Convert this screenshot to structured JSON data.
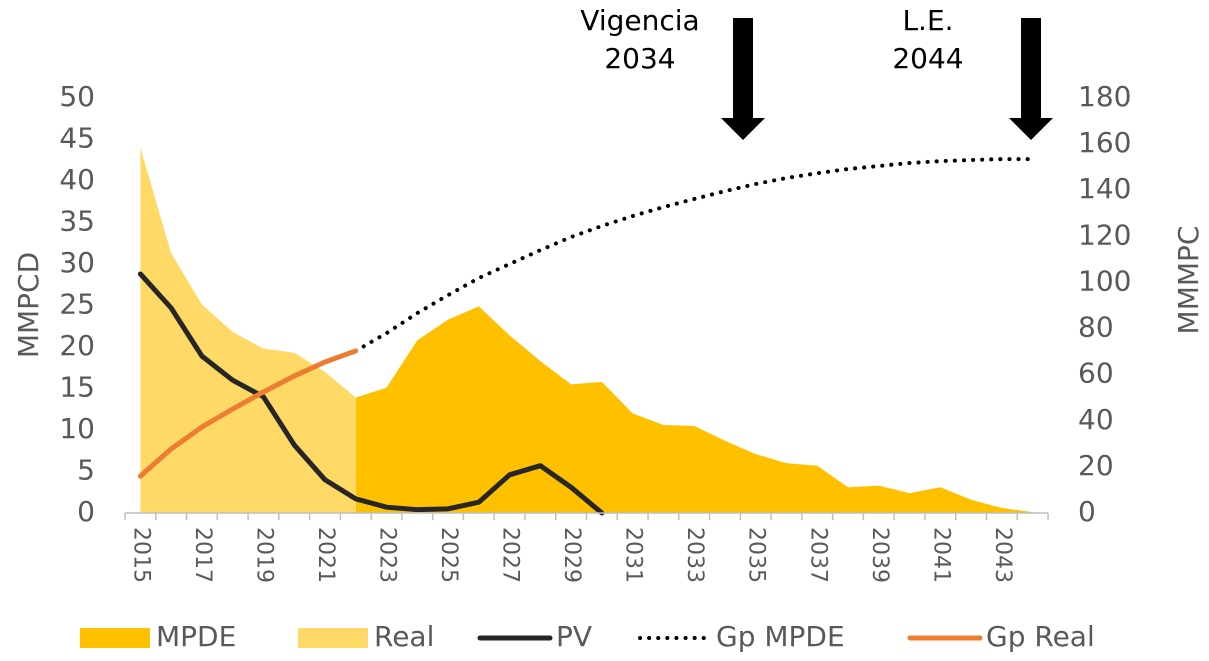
{
  "chart_data": {
    "type": "line",
    "categories": [
      "2015",
      null,
      "2017",
      null,
      "2019",
      null,
      "2021",
      null,
      "2023",
      null,
      "2025",
      null,
      "2027",
      null,
      "2029",
      null,
      "2031",
      null,
      "2033",
      null,
      "2035",
      null,
      "2037",
      null,
      "2039",
      null,
      "2041",
      null,
      "2043",
      null
    ],
    "ylabel": "MMPCD",
    "y2label": "MMMPC",
    "ylim": [
      0,
      50
    ],
    "yticks": [
      0,
      5,
      10,
      15,
      20,
      25,
      30,
      35,
      40,
      45,
      50
    ],
    "y2lim": [
      0,
      180
    ],
    "y2ticks": [
      0,
      20,
      40,
      60,
      80,
      100,
      120,
      140,
      160,
      180
    ],
    "annotations": [
      [
        "Vigencia",
        "2034"
      ],
      [
        "L.E.",
        "2044"
      ]
    ],
    "series": [
      {
        "name": "MPDE",
        "type": "area",
        "color": "#ffc000",
        "values": [
          null,
          null,
          null,
          null,
          null,
          null,
          null,
          13.9,
          15.1,
          20.8,
          23.3,
          24.9,
          21.4,
          18.3,
          15.5,
          15.8,
          12.0,
          10.6,
          10.5,
          8.7,
          7.1,
          6.0,
          5.7,
          3.1,
          3.3,
          2.4,
          3.1,
          1.6,
          0.6,
          0.1
        ]
      },
      {
        "name": "Real",
        "type": "area",
        "color": "#ffd966",
        "values": [
          44.0,
          31.3,
          25.1,
          21.8,
          19.8,
          19.3,
          17.0,
          13.9,
          null,
          null,
          null,
          null,
          null,
          null,
          null,
          null,
          null,
          null,
          null,
          null,
          null,
          null,
          null,
          null,
          null,
          null,
          null,
          null,
          null,
          null
        ]
      },
      {
        "name": "PV",
        "type": "line",
        "color": "#262626",
        "values": [
          28.8,
          24.7,
          18.9,
          16.0,
          14.0,
          8.2,
          4.0,
          1.7,
          0.7,
          0.4,
          0.5,
          1.3,
          4.6,
          5.7,
          3.1,
          0,
          null,
          null,
          null,
          null,
          null,
          null,
          null,
          null,
          null,
          null,
          null,
          null,
          null,
          null
        ]
      },
      {
        "name": "Gp MPDE",
        "type": "line",
        "dotted": true,
        "axis": "y2",
        "color": "#000000",
        "values": [
          null,
          null,
          null,
          null,
          null,
          null,
          null,
          70.3,
          78,
          86.7,
          94.5,
          101.9,
          108,
          114,
          119.7,
          124.5,
          128.8,
          132.7,
          136.2,
          139.6,
          142.7,
          145.3,
          147.4,
          149.2,
          150.5,
          151.8,
          152.6,
          153.1,
          153.5,
          153.5
        ]
      },
      {
        "name": "Gp Real",
        "type": "line",
        "axis": "y2",
        "color": "#ed7d31",
        "values": [
          16,
          27.8,
          37.3,
          45.1,
          52.5,
          59.4,
          65.5,
          70.3,
          null,
          null,
          null,
          null,
          null,
          null,
          null,
          null,
          null,
          null,
          null,
          null,
          null,
          null,
          null,
          null,
          null,
          null,
          null,
          null,
          null,
          null
        ]
      }
    ]
  }
}
